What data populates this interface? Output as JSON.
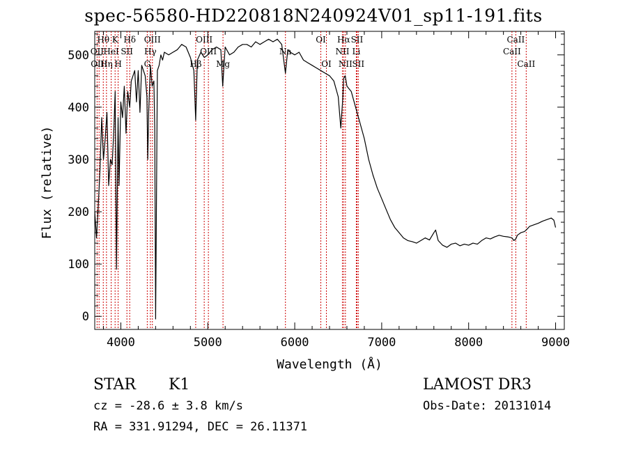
{
  "title": "spec-56580-HD220818N240924V01_sp11-191.fits",
  "info": {
    "object_class": "STAR",
    "subclass": "K1",
    "survey": "LAMOST DR3",
    "redshift": "cz = -28.6 ± 3.8 km/s",
    "obs_date": "Obs-Date: 20131014",
    "coords": "RA = 331.91294, DEC =  26.11371"
  },
  "chart_data": {
    "type": "line",
    "xlabel": "Wavelength (Å)",
    "ylabel": "Flux (relative)",
    "xlim": [
      3700,
      9100
    ],
    "ylim": [
      -25,
      545
    ],
    "xticks": [
      4000,
      5000,
      6000,
      7000,
      8000,
      9000
    ],
    "yticks": [
      0,
      100,
      200,
      300,
      400,
      500
    ],
    "line_color": "#000000",
    "marker_color": "#cc0000",
    "grid": false,
    "series": [
      {
        "x": [
          3700,
          3720,
          3740,
          3760,
          3780,
          3800,
          3820,
          3840,
          3860,
          3880,
          3900,
          3920,
          3935,
          3950,
          3968,
          3980,
          4000,
          4020,
          4040,
          4060,
          4080,
          4102,
          4120,
          4140,
          4160,
          4180,
          4200,
          4220,
          4240,
          4260,
          4280,
          4300,
          4310,
          4320,
          4340,
          4360,
          4380,
          4390,
          4400,
          4420,
          4440,
          4460,
          4480,
          4500,
          4550,
          4600,
          4650,
          4700,
          4750,
          4800,
          4840,
          4861,
          4880,
          4920,
          4960,
          5000,
          5050,
          5100,
          5150,
          5172,
          5200,
          5250,
          5300,
          5350,
          5400,
          5450,
          5500,
          5550,
          5600,
          5650,
          5700,
          5750,
          5800,
          5850,
          5893,
          5920,
          5950,
          6000,
          6050,
          6100,
          6150,
          6200,
          6250,
          6300,
          6350,
          6400,
          6450,
          6500,
          6530,
          6550,
          6563,
          6580,
          6600,
          6650,
          6700,
          6750,
          6800,
          6850,
          6900,
          6950,
          7000,
          7050,
          7100,
          7150,
          7200,
          7250,
          7300,
          7350,
          7400,
          7450,
          7500,
          7550,
          7600,
          7620,
          7650,
          7700,
          7750,
          7800,
          7850,
          7900,
          7950,
          8000,
          8050,
          8100,
          8150,
          8200,
          8250,
          8300,
          8350,
          8400,
          8450,
          8498,
          8520,
          8542,
          8560,
          8600,
          8640,
          8662,
          8700,
          8750,
          8800,
          8850,
          8900,
          8950,
          8980,
          9000
        ],
        "y": [
          200,
          150,
          210,
          280,
          380,
          300,
          340,
          390,
          250,
          300,
          290,
          360,
          430,
          90,
          380,
          250,
          410,
          380,
          440,
          350,
          430,
          400,
          450,
          460,
          470,
          410,
          470,
          390,
          480,
          470,
          460,
          420,
          300,
          390,
          480,
          440,
          450,
          360,
          -5,
          470,
          480,
          500,
          490,
          505,
          500,
          505,
          510,
          520,
          515,
          495,
          470,
          375,
          490,
          505,
          495,
          500,
          510,
          515,
          510,
          440,
          515,
          500,
          505,
          515,
          520,
          520,
          515,
          525,
          520,
          525,
          530,
          525,
          530,
          520,
          465,
          510,
          505,
          500,
          505,
          490,
          485,
          480,
          475,
          470,
          465,
          460,
          450,
          420,
          360,
          410,
          455,
          460,
          440,
          430,
          400,
          370,
          340,
          300,
          270,
          245,
          225,
          205,
          185,
          170,
          160,
          150,
          145,
          143,
          140,
          145,
          150,
          146,
          160,
          165,
          145,
          136,
          132,
          138,
          140,
          135,
          138,
          136,
          140,
          138,
          145,
          150,
          148,
          152,
          155,
          153,
          152,
          150,
          145,
          148,
          155,
          160,
          162,
          165,
          172,
          175,
          178,
          182,
          185,
          188,
          184,
          170
        ]
      }
    ],
    "line_markers": [
      {
        "label": "Hθ",
        "x": 3798,
        "row": 0
      },
      {
        "label": "OII",
        "x": 3727,
        "row": 1
      },
      {
        "label": "OIII",
        "x": 3750,
        "row": 2
      },
      {
        "label": "Hη",
        "x": 3835,
        "row": 2
      },
      {
        "label": "HeI",
        "x": 3889,
        "row": 1
      },
      {
        "label": "K",
        "x": 3934,
        "row": 0
      },
      {
        "label": "SII",
        "x": 4070,
        "row": 1
      },
      {
        "label": "H",
        "x": 3969,
        "row": 2
      },
      {
        "label": "Hδ",
        "x": 4102,
        "row": 0
      },
      {
        "label": "OIII",
        "x": 4363,
        "row": 0
      },
      {
        "label": "Hγ",
        "x": 4340,
        "row": 1
      },
      {
        "label": "G",
        "x": 4304,
        "row": 2
      },
      {
        "label": "OIII",
        "x": 4959,
        "row": 0
      },
      {
        "label": "OIII",
        "x": 5007,
        "row": 1
      },
      {
        "label": "Hβ",
        "x": 4861,
        "row": 2
      },
      {
        "label": "Mg",
        "x": 5175,
        "row": 2
      },
      {
        "label": "Na",
        "x": 5893,
        "row": 1
      },
      {
        "label": "OI",
        "x": 6300,
        "row": 0
      },
      {
        "label": "OI",
        "x": 6364,
        "row": 2
      },
      {
        "label": "Hα",
        "x": 6563,
        "row": 0
      },
      {
        "label": "NII",
        "x": 6548,
        "row": 1
      },
      {
        "label": "NII",
        "x": 6583,
        "row": 2
      },
      {
        "label": "SII",
        "x": 6716,
        "row": 0
      },
      {
        "label": "Li",
        "x": 6708,
        "row": 1
      },
      {
        "label": "SII",
        "x": 6731,
        "row": 2
      },
      {
        "label": "CaII",
        "x": 8542,
        "row": 0
      },
      {
        "label": "CaII",
        "x": 8498,
        "row": 1
      },
      {
        "label": "CaII",
        "x": 8662,
        "row": 2
      }
    ]
  }
}
